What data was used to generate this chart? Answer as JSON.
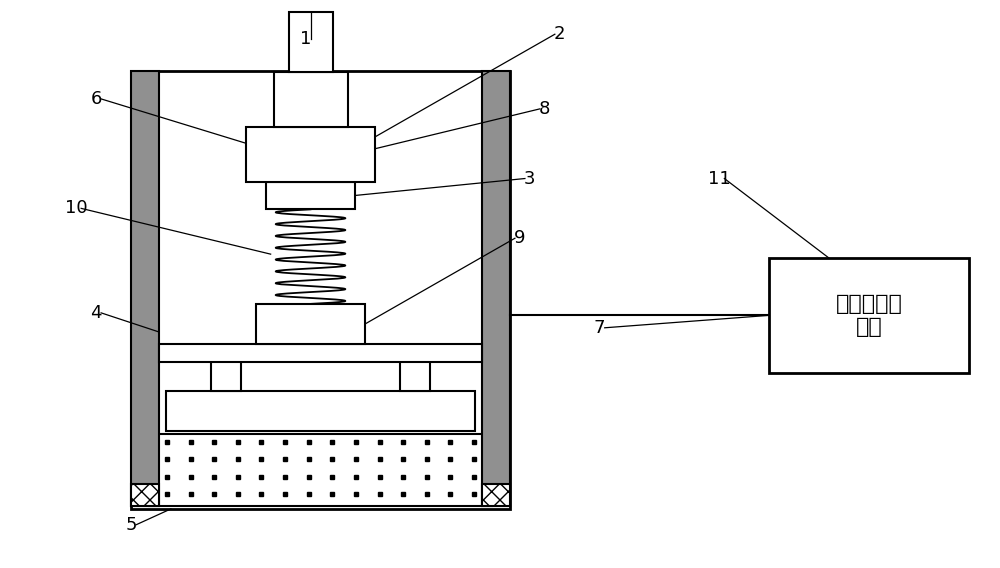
{
  "background_color": "#ffffff",
  "fig_width": 10.0,
  "fig_height": 5.68,
  "box_text": "耦合剂供给\n装置",
  "gray_color": "#909090",
  "black": "#000000",
  "white": "#ffffff",
  "label_fontsize": 13,
  "lw": 1.5,
  "lw2": 2.0
}
